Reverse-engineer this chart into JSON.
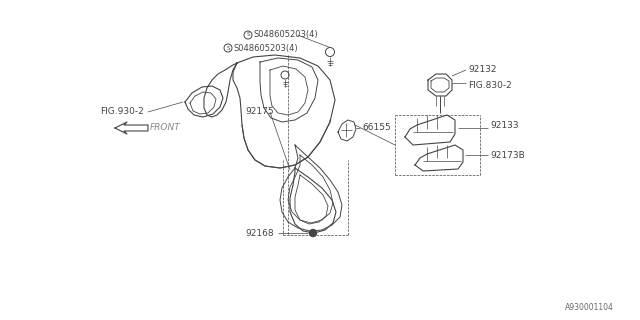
{
  "bg_color": "#ffffff",
  "line_color": "#444444",
  "text_color": "#444444",
  "diagram_id": "A930001104",
  "labels": {
    "bolt1": "S048605203(4)",
    "bolt2": "S048605203(4)",
    "fig930": "FIG.930-2",
    "part92132": "92132",
    "fig830": "FIG.830-2",
    "part92133": "92133",
    "part921738": "92173B",
    "part66155": "66155",
    "front": "FRONT",
    "part92175": "92175",
    "part92168": "92168",
    "diagram_id": "A930001104"
  },
  "figsize": [
    6.4,
    3.2
  ],
  "dpi": 100
}
